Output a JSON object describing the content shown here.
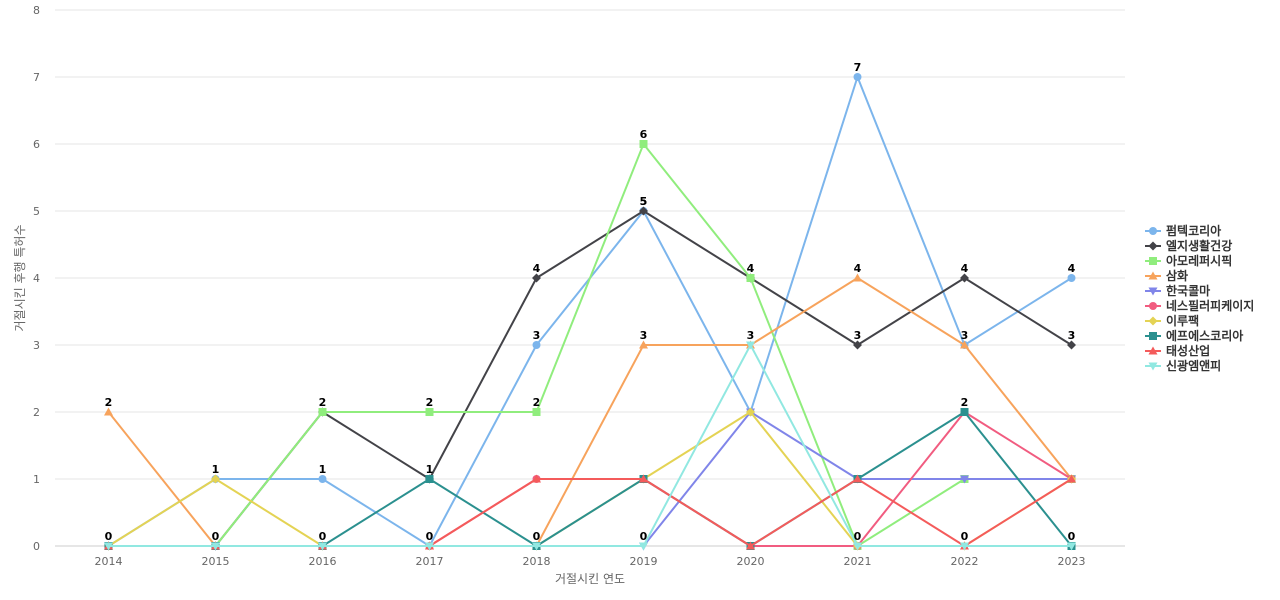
{
  "chart_data": {
    "type": "line",
    "xlabel": "거절시킨 연도",
    "ylabel": "거절시킨 후행 특허수",
    "ylim": [
      0,
      8
    ],
    "yticks": [
      0,
      1,
      2,
      3,
      4,
      5,
      6,
      7,
      8
    ],
    "categories": [
      "2014",
      "2015",
      "2016",
      "2017",
      "2018",
      "2019",
      "2020",
      "2021",
      "2022",
      "2023"
    ],
    "grid": true,
    "legend_position": "right",
    "series": [
      {
        "name": "펌텍코리아",
        "color": "#7cb5ec",
        "marker": "circle",
        "values": [
          0,
          1,
          1,
          0,
          3,
          5,
          2,
          7,
          3,
          4
        ],
        "labels": [
          null,
          1,
          1,
          null,
          3,
          5,
          null,
          7,
          3,
          4
        ]
      },
      {
        "name": "엘지생활건강",
        "color": "#434348",
        "marker": "diamond",
        "values": [
          0,
          0,
          2,
          1,
          4,
          5,
          4,
          3,
          4,
          3
        ],
        "labels": [
          null,
          null,
          2,
          1,
          4,
          5,
          4,
          3,
          4,
          3
        ]
      },
      {
        "name": "아모레퍼시픽",
        "color": "#90ed7d",
        "marker": "square",
        "values": [
          0,
          0,
          2,
          2,
          2,
          6,
          4,
          0,
          1,
          1
        ],
        "labels": [
          null,
          null,
          null,
          2,
          2,
          6,
          null,
          null,
          null,
          null
        ]
      },
      {
        "name": "삼화",
        "color": "#f7a35c",
        "marker": "triangle",
        "values": [
          2,
          0,
          0,
          0,
          0,
          3,
          3,
          4,
          3,
          1
        ],
        "labels": [
          2,
          null,
          null,
          null,
          null,
          3,
          3,
          4,
          null,
          null
        ]
      },
      {
        "name": "한국콜마",
        "color": "#8085e9",
        "marker": "triangle-down",
        "values": [
          0,
          0,
          0,
          0,
          0,
          0,
          2,
          1,
          1,
          1
        ],
        "labels": [
          null,
          null,
          null,
          null,
          null,
          null,
          null,
          null,
          null,
          null
        ]
      },
      {
        "name": "네스필러피케이지",
        "color": "#f15c80",
        "marker": "circle",
        "values": [
          0,
          0,
          0,
          0,
          1,
          1,
          0,
          0,
          2,
          1
        ],
        "labels": [
          null,
          null,
          null,
          null,
          null,
          null,
          null,
          null,
          null,
          null
        ]
      },
      {
        "name": "이루팩",
        "color": "#e4d354",
        "marker": "diamond",
        "values": [
          0,
          1,
          0,
          0,
          0,
          1,
          2,
          0,
          0,
          1
        ],
        "labels": [
          null,
          null,
          null,
          null,
          null,
          null,
          null,
          null,
          null,
          null
        ]
      },
      {
        "name": "에프에스코리아",
        "color": "#2b908f",
        "marker": "square",
        "values": [
          0,
          0,
          0,
          1,
          0,
          1,
          0,
          1,
          2,
          0
        ],
        "labels": [
          null,
          null,
          null,
          null,
          null,
          null,
          null,
          null,
          2,
          null
        ]
      },
      {
        "name": "태성산업",
        "color": "#f45b5b",
        "marker": "triangle",
        "values": [
          0,
          0,
          0,
          0,
          1,
          1,
          0,
          1,
          0,
          1
        ],
        "labels": [
          null,
          null,
          null,
          null,
          null,
          null,
          null,
          null,
          null,
          null
        ]
      },
      {
        "name": "신광엠앤피",
        "color": "#91e8e1",
        "marker": "triangle-down",
        "values": [
          0,
          0,
          0,
          0,
          0,
          0,
          3,
          0,
          0,
          0
        ],
        "labels": [
          0,
          0,
          0,
          0,
          0,
          0,
          null,
          0,
          0,
          0
        ]
      }
    ]
  }
}
